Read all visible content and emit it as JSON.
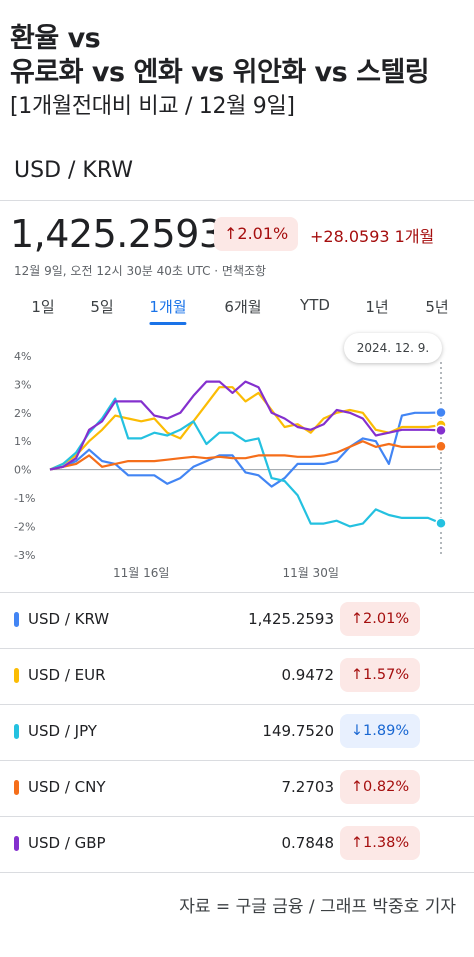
{
  "headline": {
    "line1": "환율 vs",
    "line2": "유로화 vs 엔화 vs 위안화 vs 스텔링",
    "line3": "[1개월전대비 비교 / 12월 9일]"
  },
  "pair_title": "USD / KRW",
  "price": "1,425.2593",
  "change_pct": "↑2.01%",
  "change_abs": "+28.0593 1개월",
  "meta": "12월 9일, 오전 12시 30분 40초 UTC · 면책조항",
  "tabs": [
    "1일",
    "5일",
    "1개월",
    "6개월",
    "YTD",
    "1년",
    "5년"
  ],
  "active_tab": "1개월",
  "tooltip": "2024. 12. 9.",
  "chart_data": {
    "type": "line",
    "x_ticks": [
      "11월 16일",
      "11월 30일"
    ],
    "y_ticks": [
      "4%",
      "3%",
      "2%",
      "1%",
      "0%",
      "-1%",
      "-2%",
      "-3%"
    ],
    "ylim": [
      -3,
      4
    ],
    "x_count": 31,
    "series": [
      {
        "name": "USD / KRW",
        "color": "#4285f4",
        "values": [
          0,
          0.1,
          0.3,
          0.7,
          0.3,
          0.2,
          -0.2,
          -0.2,
          -0.2,
          -0.5,
          -0.3,
          0.1,
          0.3,
          0.5,
          0.5,
          -0.1,
          -0.2,
          -0.6,
          -0.3,
          0.2,
          0.2,
          0.2,
          0.3,
          0.8,
          1.1,
          1.0,
          0.2,
          1.9,
          2.0,
          2.0,
          2.01
        ]
      },
      {
        "name": "USD / EUR",
        "color": "#fbbc04",
        "values": [
          0,
          0.2,
          0.5,
          1.0,
          1.4,
          1.9,
          1.8,
          1.7,
          1.8,
          1.3,
          1.1,
          1.7,
          2.3,
          2.9,
          2.9,
          2.4,
          2.7,
          2.1,
          1.5,
          1.6,
          1.3,
          1.8,
          2.0,
          2.1,
          2.0,
          1.4,
          1.3,
          1.5,
          1.5,
          1.5,
          1.57
        ]
      },
      {
        "name": "USD / JPY",
        "color": "#24c1e0",
        "values": [
          0,
          0.2,
          0.6,
          1.3,
          1.8,
          2.5,
          1.1,
          1.1,
          1.3,
          1.2,
          1.4,
          1.7,
          0.9,
          1.3,
          1.3,
          1.0,
          1.1,
          -0.3,
          -0.4,
          -0.9,
          -1.9,
          -1.9,
          -1.8,
          -2.0,
          -1.9,
          -1.4,
          -1.6,
          -1.7,
          -1.7,
          -1.7,
          -1.89
        ]
      },
      {
        "name": "USD / CNY",
        "color": "#f56e1a",
        "values": [
          0,
          0.1,
          0.2,
          0.5,
          0.1,
          0.2,
          0.3,
          0.3,
          0.3,
          0.35,
          0.4,
          0.45,
          0.4,
          0.45,
          0.4,
          0.4,
          0.5,
          0.5,
          0.5,
          0.45,
          0.45,
          0.5,
          0.6,
          0.8,
          1.0,
          0.8,
          0.9,
          0.8,
          0.8,
          0.8,
          0.82
        ]
      },
      {
        "name": "USD / GBP",
        "color": "#8430ce",
        "values": [
          0,
          0.1,
          0.4,
          1.4,
          1.7,
          2.4,
          2.4,
          2.4,
          1.9,
          1.8,
          2.0,
          2.6,
          3.1,
          3.1,
          2.7,
          3.1,
          2.9,
          2.0,
          1.8,
          1.5,
          1.4,
          1.6,
          2.1,
          2.0,
          1.8,
          1.2,
          1.3,
          1.4,
          1.4,
          1.4,
          1.38
        ]
      }
    ]
  },
  "rows": [
    {
      "name": "USD / KRW",
      "value": "1,425.2593",
      "change": "↑2.01%",
      "dir": "up",
      "color": "#4285f4"
    },
    {
      "name": "USD / EUR",
      "value": "0.9472",
      "change": "↑1.57%",
      "dir": "up",
      "color": "#fbbc04"
    },
    {
      "name": "USD / JPY",
      "value": "149.7520",
      "change": "↓1.89%",
      "dir": "down",
      "color": "#24c1e0"
    },
    {
      "name": "USD / CNY",
      "value": "7.2703",
      "change": "↑0.82%",
      "dir": "up",
      "color": "#f56e1a"
    },
    {
      "name": "USD / GBP",
      "value": "0.7848",
      "change": "↑1.38%",
      "dir": "up",
      "color": "#8430ce"
    }
  ],
  "source": "자료 = 구글 금융 / 그래프 박중호 기자"
}
